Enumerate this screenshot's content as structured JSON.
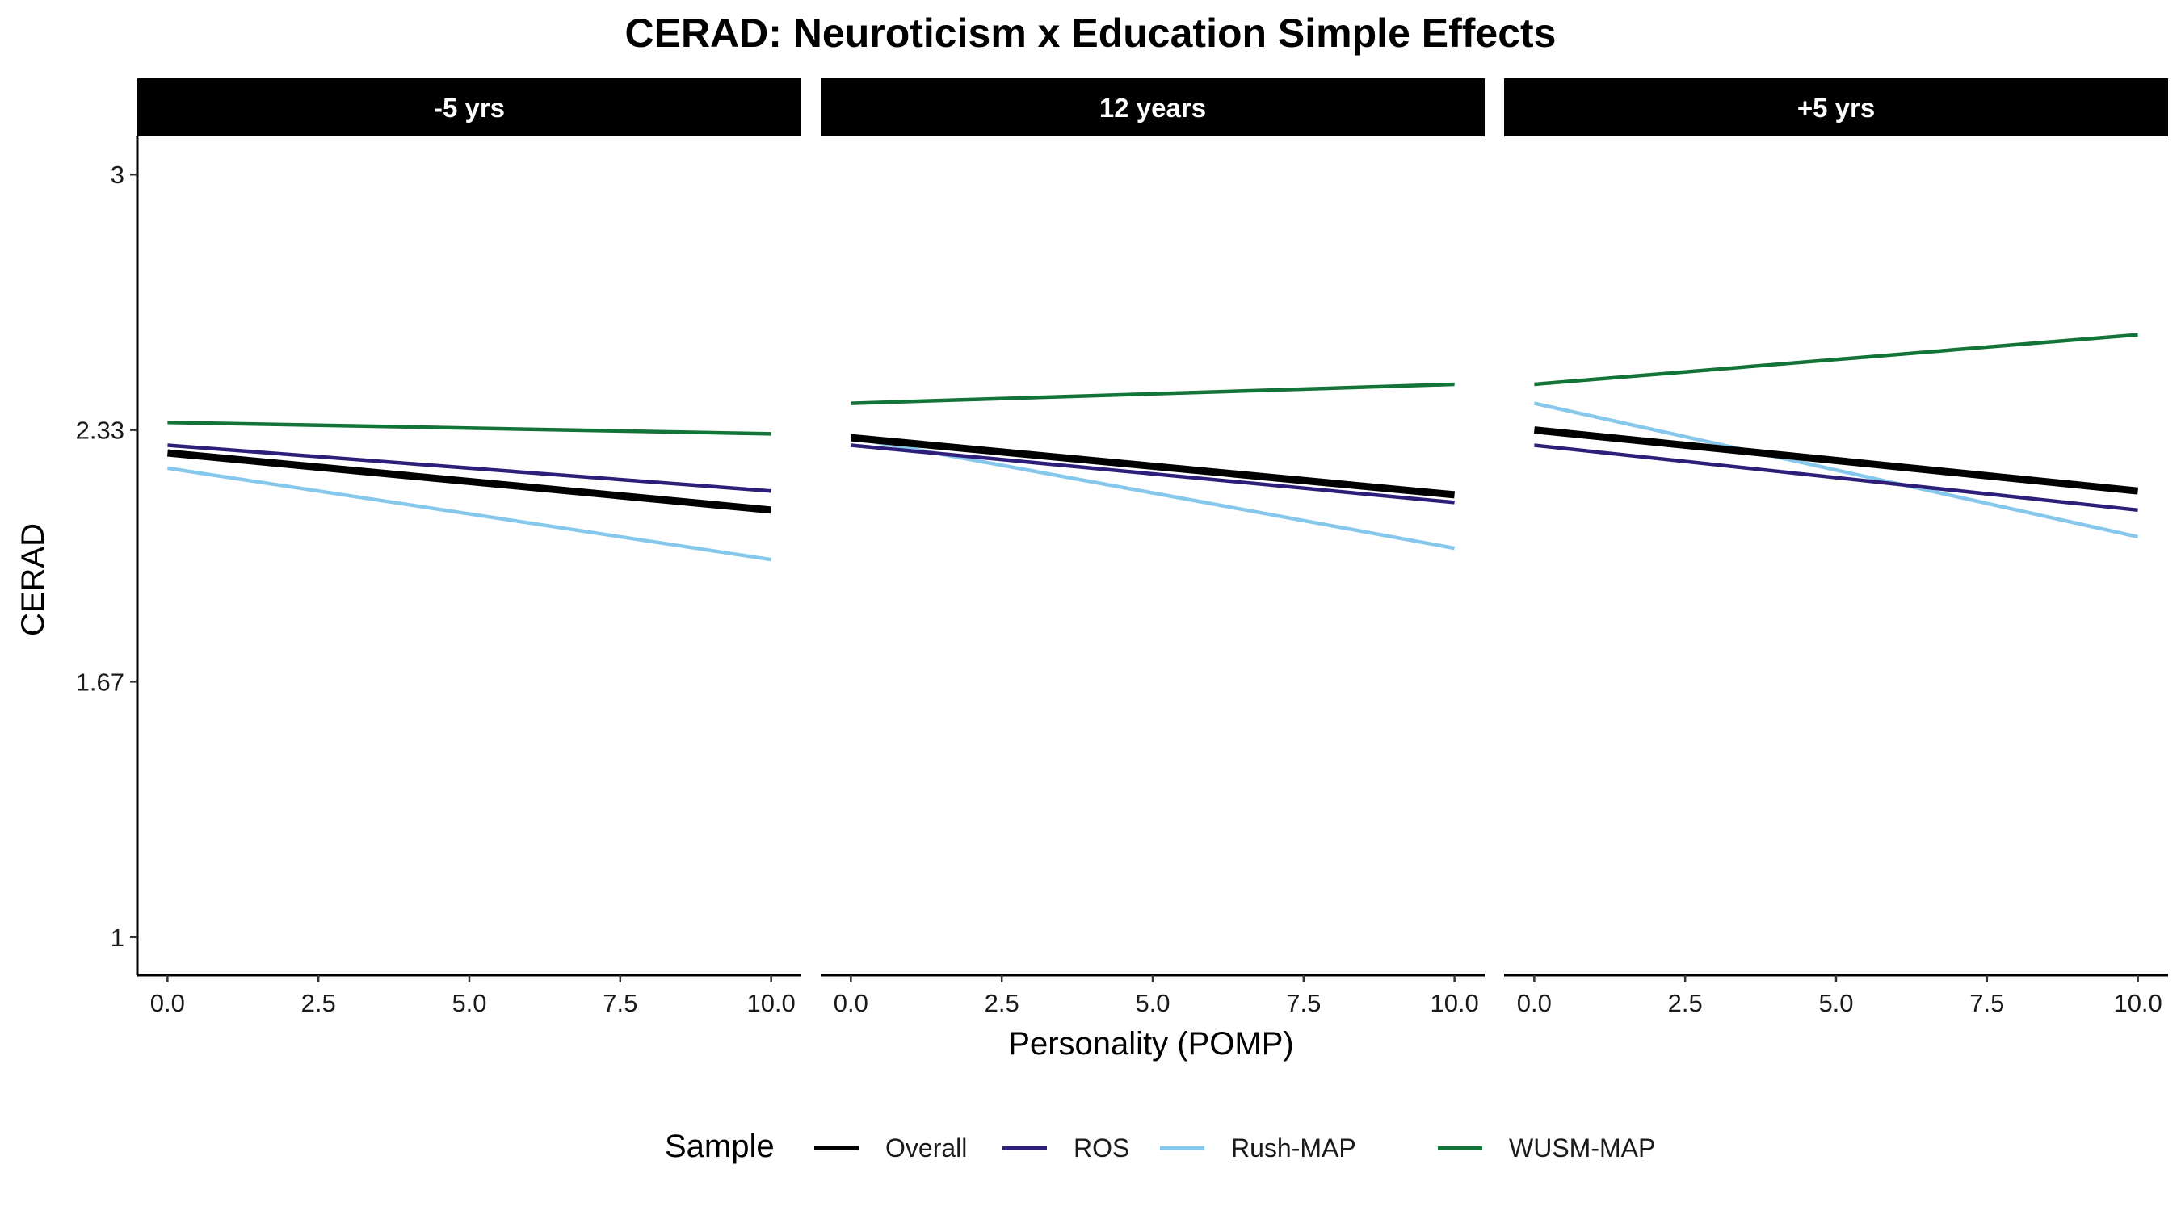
{
  "chart_data": {
    "type": "line",
    "title": "CERAD: Neuroticism x Education Simple Effects",
    "xlabel": "Personality (POMP)",
    "ylabel": "CERAD",
    "xlim": [
      -0.5,
      10.5
    ],
    "ylim": [
      0.9,
      3.1
    ],
    "xticks": [
      0,
      2.5,
      5,
      7.5,
      10
    ],
    "xtick_labels": [
      "0.0",
      "2.5",
      "5.0",
      "7.5",
      "10.0"
    ],
    "yticks": [
      1,
      1.67,
      2.33,
      3
    ],
    "ytick_labels": [
      "1",
      "1.67",
      "2.33",
      "3"
    ],
    "grid": false,
    "legend": {
      "title": "Sample",
      "position": "bottom",
      "entries": [
        {
          "name": "Overall",
          "color": "#000000"
        },
        {
          "name": "ROS",
          "color": "#2e1e7a"
        },
        {
          "name": "Rush-MAP",
          "color": "#86c7ec"
        },
        {
          "name": "WUSM-MAP",
          "color": "#127436"
        }
      ]
    },
    "panels": [
      {
        "label": "-5 yrs",
        "series": [
          {
            "name": "Overall",
            "x": [
              0,
              10
            ],
            "y": [
              2.27,
              2.12
            ]
          },
          {
            "name": "ROS",
            "x": [
              0,
              10
            ],
            "y": [
              2.29,
              2.17
            ]
          },
          {
            "name": "Rush-MAP",
            "x": [
              0,
              10
            ],
            "y": [
              2.23,
              1.99
            ]
          },
          {
            "name": "WUSM-MAP",
            "x": [
              0,
              10
            ],
            "y": [
              2.35,
              2.32
            ]
          }
        ]
      },
      {
        "label": "12 years",
        "series": [
          {
            "name": "Overall",
            "x": [
              0,
              10
            ],
            "y": [
              2.31,
              2.16
            ]
          },
          {
            "name": "ROS",
            "x": [
              0,
              10
            ],
            "y": [
              2.29,
              2.14
            ]
          },
          {
            "name": "Rush-MAP",
            "x": [
              0,
              10
            ],
            "y": [
              2.31,
              2.02
            ]
          },
          {
            "name": "WUSM-MAP",
            "x": [
              0,
              10
            ],
            "y": [
              2.4,
              2.45
            ]
          }
        ]
      },
      {
        "label": "+5 yrs",
        "series": [
          {
            "name": "Overall",
            "x": [
              0,
              10
            ],
            "y": [
              2.33,
              2.17
            ]
          },
          {
            "name": "ROS",
            "x": [
              0,
              10
            ],
            "y": [
              2.29,
              2.12
            ]
          },
          {
            "name": "Rush-MAP",
            "x": [
              0,
              10
            ],
            "y": [
              2.4,
              2.05
            ]
          },
          {
            "name": "WUSM-MAP",
            "x": [
              0,
              10
            ],
            "y": [
              2.45,
              2.58
            ]
          }
        ]
      }
    ]
  }
}
